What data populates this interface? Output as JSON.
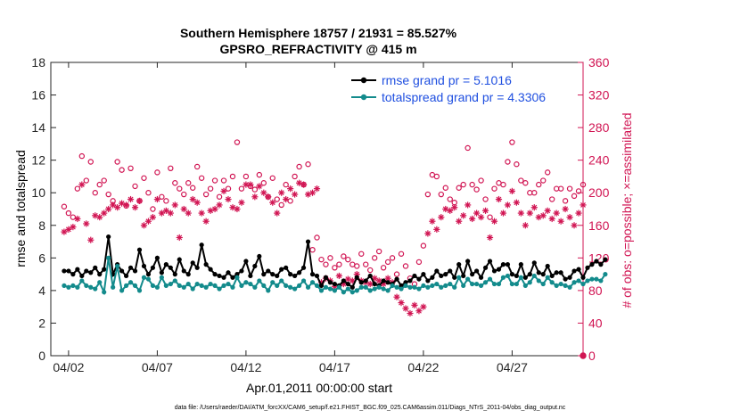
{
  "chart_data": {
    "type": "line",
    "title_line1": "Southern Hemisphere 18757 / 21931 = 85.527%",
    "title_line2": "GPSRO_REFRACTIVITY @ 415 m",
    "xlabel": "Apr.01,2011 00:00:00 start",
    "ylabel_left": "rmse and totalspread",
    "ylabel_right": "# of obs: o=possible; ×=assimilated",
    "footnote": "data file: /Users/raeder/DAI/ATM_forcXX/CAM6_setup/f.e21.FHIST_BGC.f09_025.CAM6assim.011/Diags_NTrS_2011-04/obs_diag_output.nc",
    "x_range_days": [
      0,
      30
    ],
    "ylim_left": [
      0,
      18
    ],
    "ylim_right": [
      0,
      360
    ],
    "x_ticks": [
      {
        "day": 1,
        "label": "04/02"
      },
      {
        "day": 6,
        "label": "04/07"
      },
      {
        "day": 11,
        "label": "04/12"
      },
      {
        "day": 16,
        "label": "04/17"
      },
      {
        "day": 21,
        "label": "04/22"
      },
      {
        "day": 26,
        "label": "04/27"
      }
    ],
    "y_ticks_left": [
      "0",
      "2",
      "4",
      "6",
      "8",
      "10",
      "12",
      "14",
      "16",
      "18"
    ],
    "y_ticks_right": [
      "0",
      "40",
      "80",
      "120",
      "160",
      "200",
      "240",
      "280",
      "320",
      "360"
    ],
    "series": [
      {
        "name": "rmse grand pr = 5.1016",
        "axis": "left",
        "color": "#000000",
        "x_step_days": 0.25,
        "values": [
          5.2,
          5.2,
          5.0,
          5.3,
          4.9,
          5.2,
          5.1,
          5.4,
          5.0,
          5.3,
          7.3,
          5.0,
          5.6,
          5.2,
          4.9,
          5.4,
          5.2,
          6.5,
          5.5,
          5.0,
          5.4,
          6.0,
          5.1,
          5.6,
          5.4,
          5.0,
          5.9,
          5.2,
          5.0,
          5.7,
          5.4,
          6.8,
          5.6,
          5.3,
          5.0,
          4.9,
          4.8,
          5.1,
          4.8,
          5.0,
          5.2,
          5.8,
          4.9,
          5.5,
          6.1,
          5.0,
          5.2,
          5.0,
          4.9,
          5.3,
          5.4,
          5.0,
          4.9,
          5.1,
          5.4,
          7.0,
          5.0,
          4.9,
          4.3,
          4.8,
          4.5,
          4.4,
          4.3,
          4.6,
          4.4,
          4.2,
          4.8,
          4.5,
          4.6,
          4.9,
          4.4,
          4.3,
          4.6,
          4.5,
          4.4,
          4.7,
          4.3,
          4.5,
          4.6,
          4.9,
          4.7,
          5.0,
          4.6,
          4.8,
          5.2,
          4.9,
          5.0,
          5.2,
          4.8,
          5.6,
          4.9,
          5.8,
          5.0,
          5.2,
          4.8,
          5.4,
          5.8,
          5.2,
          5.3,
          5.6,
          5.6,
          5.0,
          4.9,
          5.6,
          4.8,
          5.0,
          5.7,
          5.1,
          5.0,
          5.5,
          4.9,
          5.1,
          5.1,
          4.7,
          4.8,
          5.2,
          5.3,
          4.8,
          5.4,
          5.6,
          5.8,
          5.6,
          5.9
        ]
      },
      {
        "name": "totalspread grand pr = 4.3306",
        "axis": "left",
        "color": "#138b8c",
        "x_step_days": 0.25,
        "values": [
          4.3,
          4.2,
          4.3,
          4.2,
          4.6,
          4.3,
          4.2,
          4.1,
          4.5,
          3.9,
          6.0,
          4.2,
          5.5,
          4.0,
          4.3,
          4.5,
          4.3,
          4.0,
          4.8,
          4.7,
          4.3,
          4.2,
          4.8,
          4.3,
          4.4,
          4.6,
          4.3,
          4.2,
          4.4,
          4.1,
          4.4,
          4.3,
          4.2,
          4.4,
          4.3,
          4.1,
          4.3,
          4.4,
          4.2,
          4.8,
          4.3,
          4.5,
          4.4,
          4.2,
          4.6,
          4.3,
          4.0,
          4.5,
          4.3,
          4.6,
          4.3,
          4.2,
          4.1,
          4.3,
          4.6,
          4.2,
          4.5,
          4.3,
          4.0,
          4.2,
          4.1,
          4.0,
          4.2,
          3.9,
          4.1,
          3.9,
          4.0,
          4.2,
          4.2,
          4.0,
          4.1,
          4.2,
          4.1,
          4.0,
          4.3,
          4.2,
          4.1,
          4.3,
          4.2,
          4.2,
          4.1,
          4.3,
          4.2,
          4.3,
          4.4,
          4.2,
          4.3,
          4.4,
          4.2,
          4.8,
          4.3,
          4.7,
          4.4,
          4.4,
          4.3,
          4.5,
          4.7,
          4.4,
          4.4,
          4.8,
          4.9,
          4.4,
          4.4,
          4.8,
          4.3,
          4.5,
          4.9,
          4.6,
          4.4,
          4.8,
          4.5,
          4.3,
          4.4,
          4.3,
          4.2,
          4.5,
          4.6,
          4.4,
          4.6,
          4.7,
          4.7,
          4.6,
          5.0
        ]
      },
      {
        "name": "possible",
        "axis": "right",
        "marker": "circle",
        "color": "#d11553",
        "x_step_days": 0.25,
        "values": [
          183,
          175,
          170,
          205,
          245,
          215,
          238,
          200,
          210,
          215,
          198,
          190,
          238,
          228,
          184,
          230,
          208,
          190,
          218,
          200,
          180,
          225,
          195,
          190,
          230,
          212,
          205,
          198,
          212,
          206,
          232,
          218,
          198,
          205,
          215,
          195,
          215,
          205,
          220,
          262,
          205,
          220,
          208,
          204,
          222,
          212,
          195,
          218,
          192,
          185,
          210,
          190,
          220,
          232,
          210,
          235,
          130,
          145,
          118,
          112,
          120,
          108,
          112,
          122,
          118,
          112,
          110,
          125,
          112,
          105,
          120,
          128,
          108,
          115,
          120,
          100,
          125,
          110,
          95,
          88,
          115,
          135,
          198,
          222,
          220,
          198,
          206,
          192,
          188,
          206,
          210,
          255,
          210,
          204,
          215,
          192,
          170,
          205,
          212,
          210,
          238,
          262,
          235,
          215,
          212,
          200,
          200,
          210,
          215,
          225,
          192,
          205,
          205,
          190,
          205,
          196,
          202,
          210,
          235,
          215,
          242
        ]
      },
      {
        "name": "assimilated",
        "axis": "right",
        "marker": "asterisk",
        "color": "#d11553",
        "x_step_days": 0.25,
        "values": [
          152,
          155,
          158,
          168,
          210,
          162,
          142,
          172,
          170,
          175,
          180,
          185,
          182,
          187,
          185,
          192,
          182,
          190,
          160,
          165,
          170,
          192,
          175,
          178,
          175,
          185,
          145,
          180,
          175,
          192,
          188,
          175,
          165,
          178,
          180,
          185,
          202,
          192,
          182,
          180,
          188,
          210,
          210,
          195,
          208,
          200,
          195,
          188,
          175,
          200,
          192,
          205,
          198,
          212,
          210,
          198,
          200,
          205,
          90,
          95,
          92,
          85,
          98,
          88,
          94,
          92,
          100,
          92,
          90,
          88,
          95,
          92,
          88,
          95,
          90,
          72,
          65,
          58,
          52,
          62,
          55,
          60,
          150,
          165,
          155,
          170,
          180,
          178,
          182,
          165,
          172,
          185,
          168,
          175,
          170,
          178,
          145,
          165,
          192,
          175,
          185,
          202,
          188,
          175,
          160,
          175,
          182,
          170,
          172,
          178,
          168,
          175,
          165,
          180,
          170,
          160,
          175,
          185,
          180,
          170,
          198
        ]
      }
    ]
  }
}
